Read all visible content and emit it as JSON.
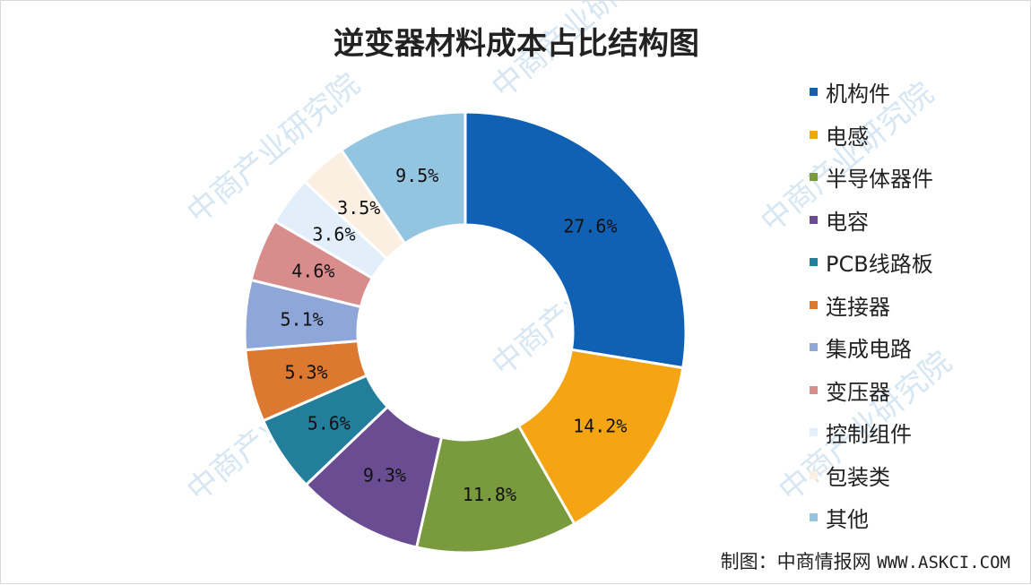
{
  "chart_data": {
    "type": "pie",
    "donut": true,
    "title": "逆变器材料成本占比结构图",
    "unit": "%",
    "categories": [
      "机构件",
      "电感",
      "半导体器件",
      "电容",
      "PCB线路板",
      "连接器",
      "集成电路",
      "变压器",
      "控制组件",
      "包装类",
      "其他"
    ],
    "values": [
      27.6,
      14.2,
      11.8,
      9.3,
      5.6,
      5.3,
      5.1,
      4.6,
      3.6,
      3.5,
      9.5
    ],
    "labels": [
      "27.6%",
      "14.2%",
      "11.8%",
      "9.3%",
      "5.6%",
      "5.3%",
      "5.1%",
      "4.6%",
      "3.6%",
      "3.5%",
      "9.5%"
    ],
    "colors": [
      "#1060B4",
      "#F5A514",
      "#7A9A3E",
      "#6A4C93",
      "#237E9C",
      "#DD7830",
      "#8EA6D8",
      "#D98C8C",
      "#E3EEFB",
      "#FBEFE2",
      "#93C4E0"
    ],
    "legend_position": "right",
    "start_angle": "12 o'clock, clockwise"
  },
  "credit": {
    "prefix": "制图：中商情报网",
    "url": "WWW.ASKCI.COM"
  },
  "watermark": "中商产业研究院"
}
